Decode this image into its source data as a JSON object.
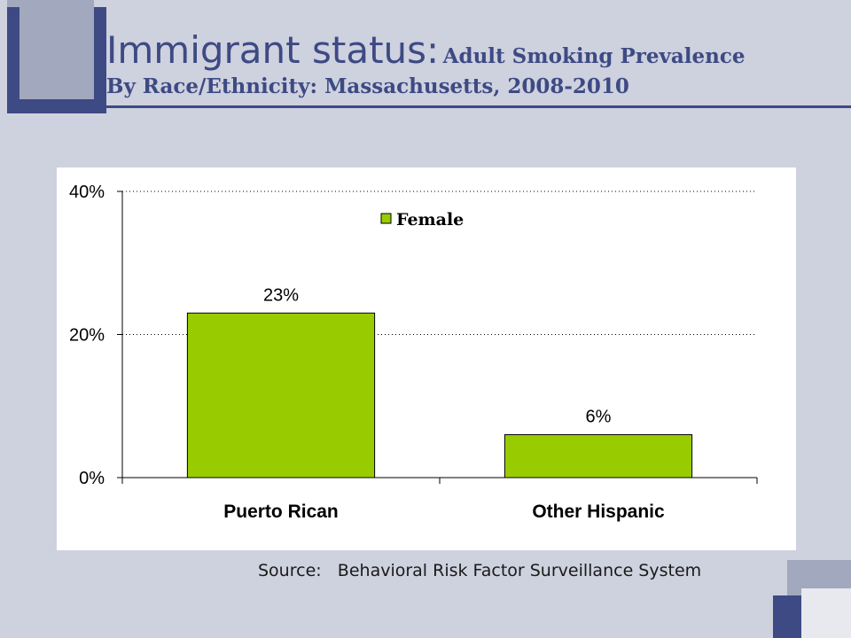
{
  "slide": {
    "title_main": "Immigrant status:",
    "title_sub_line1": "Adult Smoking Prevalence",
    "title_sub_line2": "By Race/Ethnicity: Massachusetts, 2008-2010",
    "source_label": "Source:",
    "source_text": "Behavioral Risk Factor Surveillance System",
    "accent_color": "#3d4a84",
    "deco_color": "#a2a8bd",
    "background_color": "#ced1de"
  },
  "chart_data": {
    "type": "bar",
    "title": "",
    "xlabel": "",
    "ylabel": "",
    "categories": [
      "Puerto Rican",
      "Other Hispanic"
    ],
    "series": [
      {
        "name": "Female",
        "values": [
          23,
          6
        ],
        "color": "#99cc00",
        "data_labels": [
          "23%",
          "6%"
        ]
      }
    ],
    "ylim": [
      0,
      40
    ],
    "yticks": [
      0,
      20,
      40
    ],
    "ytick_labels": [
      "0%",
      "20%",
      "40%"
    ],
    "grid": "dotted horizontal",
    "legend_position": "top-center"
  }
}
